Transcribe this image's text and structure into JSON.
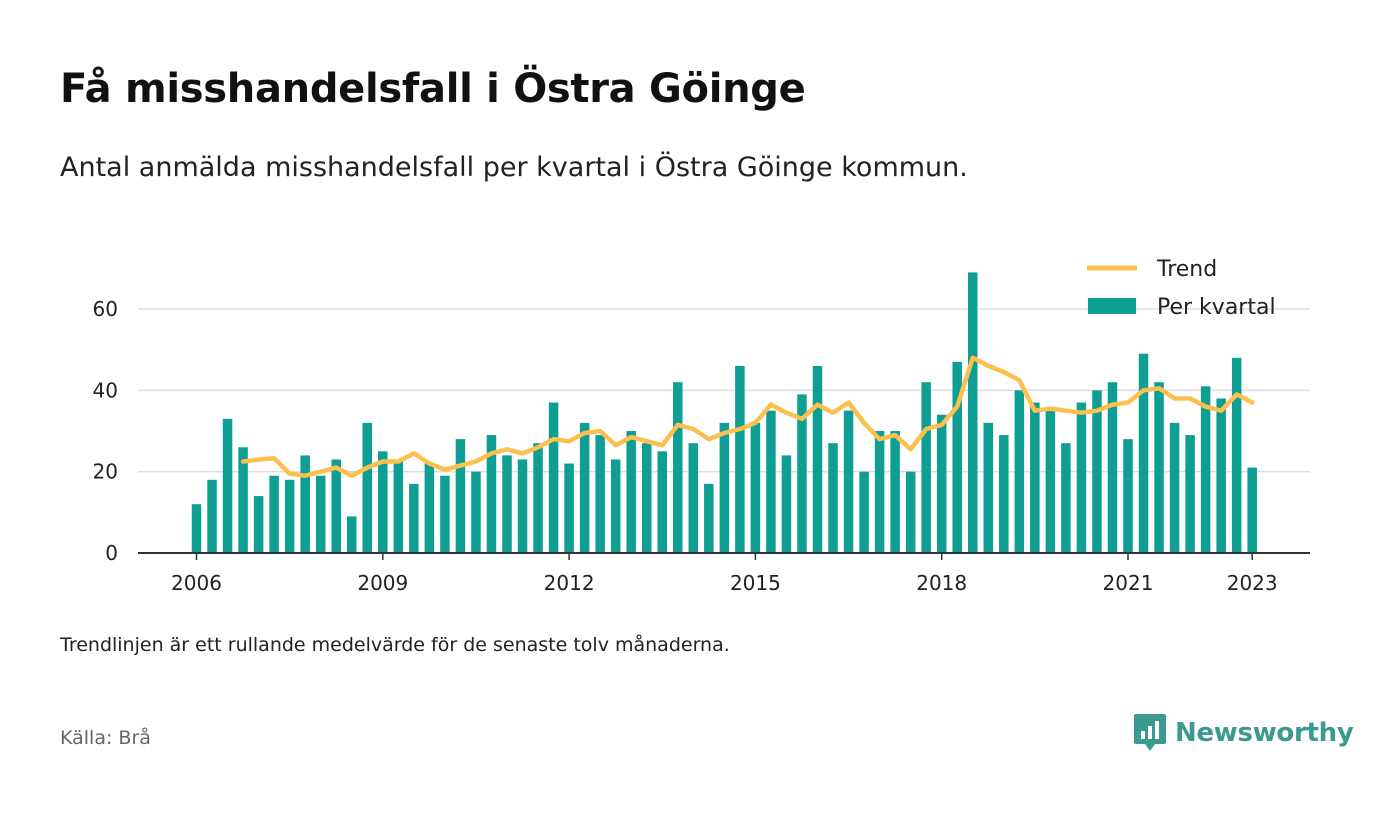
{
  "title": "Få misshandelsfall i Östra Göinge",
  "subtitle": "Antal anmälda misshandelsfall per kvartal i Östra Göinge kommun.",
  "note": "Trendlinjen är ett rullande medelvärde för de senaste tolv månaderna.",
  "source": "Källa: Brå",
  "brand": {
    "name": "Newsworthy",
    "icon": "newsworthy-logo-icon"
  },
  "colors": {
    "bar": "#0f9e93",
    "trend": "#fbc04d",
    "grid": "#dddddd",
    "axis": "#333333",
    "brand": "#3a9a8f"
  },
  "chart_data": {
    "type": "bar",
    "x_start": 2006.0,
    "x_step": 0.25,
    "x_ticks": [
      "2006",
      "2009",
      "2012",
      "2015",
      "2018",
      "2021",
      "2023"
    ],
    "y_ticks": [
      "0",
      "20",
      "40",
      "60"
    ],
    "ylim": [
      0,
      70
    ],
    "grid": true,
    "legend_position": "top-right",
    "series": [
      {
        "name": "Per kvartal",
        "type": "bar",
        "values": [
          12,
          18,
          33,
          26,
          14,
          19,
          18,
          24,
          19,
          23,
          9,
          32,
          25,
          23,
          17,
          22,
          19,
          28,
          20,
          29,
          24,
          23,
          27,
          37,
          22,
          32,
          29,
          23,
          30,
          27,
          25,
          42,
          27,
          17,
          32,
          46,
          32,
          35,
          24,
          39,
          46,
          27,
          35,
          20,
          30,
          30,
          20,
          42,
          34,
          47,
          69,
          32,
          29,
          40,
          37,
          35,
          27,
          37,
          40,
          42,
          28,
          49,
          42,
          32,
          29,
          41,
          38,
          48,
          21
        ]
      },
      {
        "name": "Trend",
        "type": "line",
        "values": [
          null,
          null,
          null,
          22.5,
          23.0,
          23.3,
          19.5,
          19.0,
          20.0,
          21.0,
          19.0,
          21.0,
          22.5,
          22.5,
          24.5,
          22.0,
          20.5,
          21.5,
          22.5,
          24.5,
          25.5,
          24.5,
          26.0,
          28.0,
          27.5,
          29.5,
          30.0,
          26.5,
          28.5,
          27.5,
          26.5,
          31.5,
          30.5,
          28.0,
          29.5,
          30.5,
          32.0,
          36.5,
          34.5,
          33.0,
          36.5,
          34.5,
          37.0,
          32.0,
          28.0,
          29.0,
          25.5,
          30.5,
          31.5,
          36.0,
          48.0,
          46.0,
          44.5,
          42.5,
          35.0,
          35.5,
          35.0,
          34.5,
          35.0,
          36.5,
          37.0,
          40.0,
          40.5,
          38.0,
          38.0,
          36.0,
          35.0,
          39.0,
          37.0
        ]
      }
    ]
  }
}
